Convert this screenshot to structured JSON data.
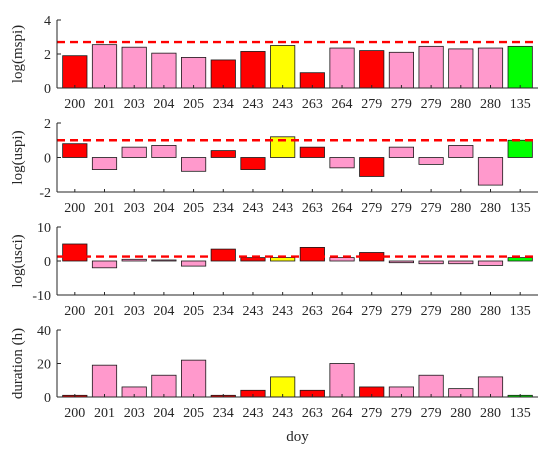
{
  "colors": {
    "red": "#ff0000",
    "pink": "#ff99cc",
    "yellow": "#ffff00",
    "green": "#00ff00",
    "threshold": "#ff0000",
    "axis": "#262626",
    "bar_edge": "#1a1a1a"
  },
  "chart_data": [
    {
      "type": "bar",
      "ylabel": "log(mspi)",
      "ylim": [
        0,
        4
      ],
      "yticks": [
        0,
        2,
        4
      ],
      "categories": [
        "200",
        "201",
        "203",
        "204",
        "205",
        "234",
        "243",
        "243",
        "263",
        "264",
        "279",
        "279",
        "279",
        "280",
        "280",
        "135"
      ],
      "values": [
        1.9,
        2.55,
        2.4,
        2.05,
        1.8,
        1.65,
        2.15,
        2.5,
        0.9,
        2.35,
        2.2,
        2.1,
        2.45,
        2.3,
        2.35,
        2.45
      ],
      "bar_colors": [
        "red",
        "pink",
        "pink",
        "pink",
        "pink",
        "red",
        "red",
        "yellow",
        "red",
        "pink",
        "red",
        "pink",
        "pink",
        "pink",
        "pink",
        "green"
      ],
      "threshold": 2.7
    },
    {
      "type": "bar",
      "ylabel": "log(uspi)",
      "ylim": [
        -2,
        2
      ],
      "yticks": [
        -2,
        0,
        2
      ],
      "categories": [
        "200",
        "201",
        "203",
        "204",
        "205",
        "234",
        "243",
        "243",
        "263",
        "264",
        "279",
        "279",
        "279",
        "280",
        "280",
        "135"
      ],
      "values": [
        0.8,
        -0.7,
        0.6,
        0.7,
        -0.8,
        0.4,
        -0.7,
        1.2,
        0.6,
        -0.6,
        -1.1,
        0.6,
        -0.4,
        0.7,
        -1.6,
        1.0
      ],
      "bar_colors": [
        "red",
        "pink",
        "pink",
        "pink",
        "pink",
        "red",
        "red",
        "yellow",
        "red",
        "pink",
        "red",
        "pink",
        "pink",
        "pink",
        "pink",
        "green"
      ],
      "threshold": 1.0
    },
    {
      "type": "bar",
      "ylabel": "log(usci)",
      "ylim": [
        -10,
        10
      ],
      "yticks": [
        -10,
        0,
        10
      ],
      "categories": [
        "200",
        "201",
        "203",
        "204",
        "205",
        "234",
        "243",
        "243",
        "263",
        "264",
        "279",
        "279",
        "279",
        "280",
        "280",
        "135"
      ],
      "values": [
        5.0,
        -2.0,
        0.5,
        0.3,
        -1.5,
        3.5,
        1.0,
        1.0,
        4.0,
        1.0,
        2.5,
        -0.5,
        -0.8,
        -0.8,
        -1.3,
        1.0
      ],
      "bar_colors": [
        "red",
        "pink",
        "pink",
        "pink",
        "pink",
        "red",
        "red",
        "yellow",
        "red",
        "pink",
        "red",
        "pink",
        "pink",
        "pink",
        "pink",
        "green"
      ],
      "threshold": 1.3
    },
    {
      "type": "bar",
      "ylabel": "duration (h)",
      "xlabel": "doy",
      "ylim": [
        0,
        40
      ],
      "yticks": [
        0,
        20,
        40
      ],
      "categories": [
        "200",
        "201",
        "203",
        "204",
        "205",
        "234",
        "243",
        "243",
        "263",
        "264",
        "279",
        "279",
        "279",
        "280",
        "280",
        "135"
      ],
      "values": [
        1,
        19,
        6,
        13,
        22,
        1,
        4,
        12,
        4,
        20,
        6,
        6,
        13,
        5,
        12,
        1
      ],
      "bar_colors": [
        "red",
        "pink",
        "pink",
        "pink",
        "pink",
        "red",
        "red",
        "yellow",
        "red",
        "pink",
        "red",
        "pink",
        "pink",
        "pink",
        "pink",
        "green"
      ]
    }
  ]
}
